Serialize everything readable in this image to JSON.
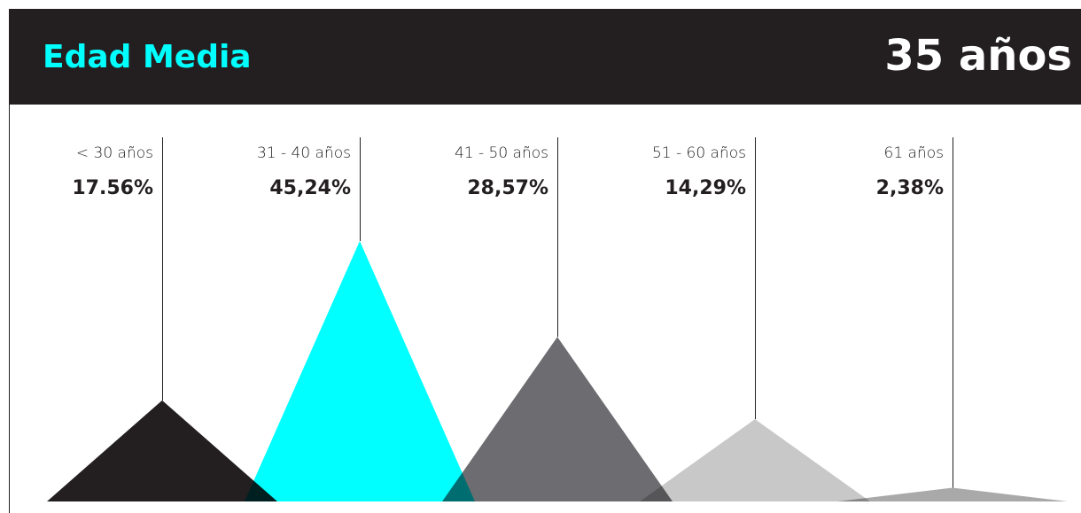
{
  "chart_data": {
    "type": "triangle",
    "title": "Edad Media",
    "annotation": "35 años",
    "categories": [
      "< 30 años",
      "31 - 40 años",
      "41 - 50 años",
      "51 - 60 años",
      "61 años"
    ],
    "values": [
      17.56,
      45.24,
      28.57,
      14.29,
      2.38
    ],
    "value_labels": [
      "17.56%",
      "45,24%",
      "28,57%",
      "14,29%",
      "2,38%"
    ],
    "colors": [
      "#231f20",
      "#00ffff",
      "#6d6d71",
      "#c8c8c9",
      "#a9a9aa"
    ],
    "ylim": [
      0,
      50
    ]
  }
}
